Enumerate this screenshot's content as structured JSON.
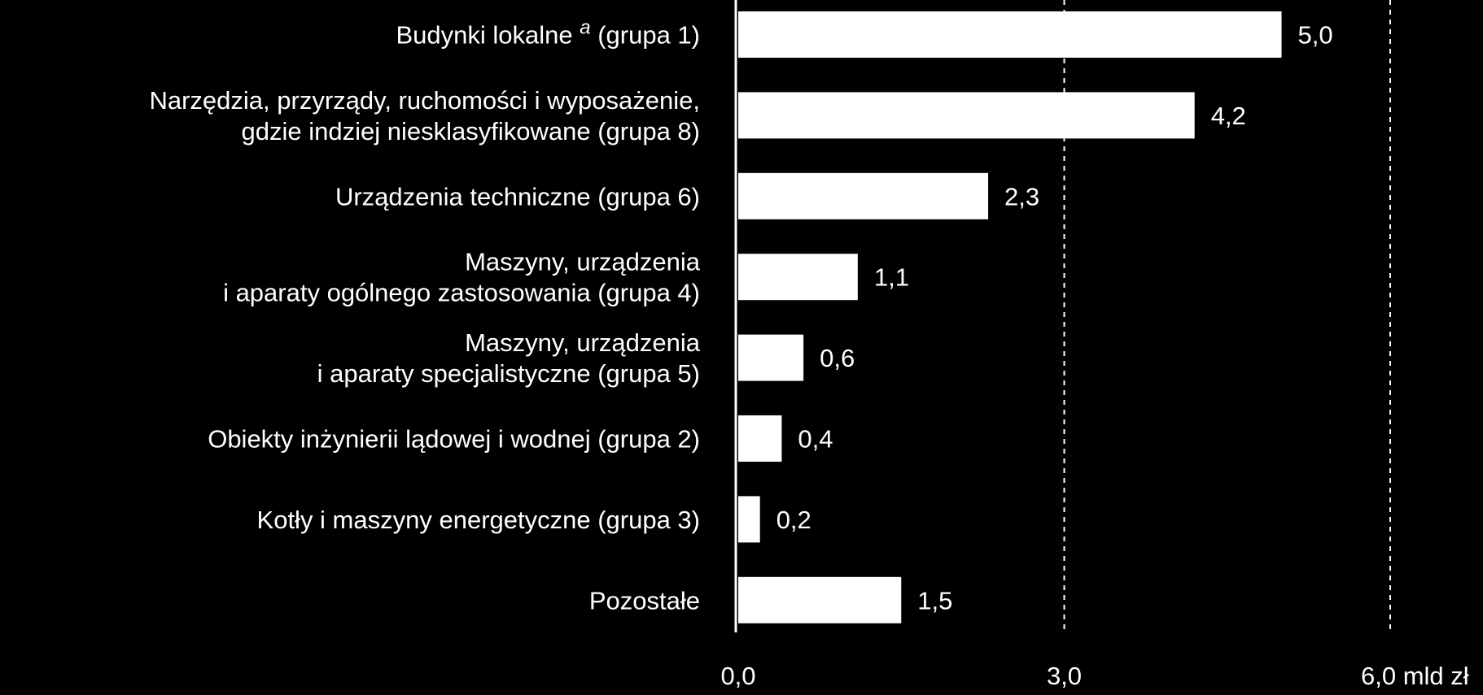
{
  "chart_data": {
    "type": "bar",
    "orientation": "horizontal",
    "categories": [
      [
        "Budynki lokalne",
        "a",
        "(grupa 1)"
      ],
      [
        "Narzędzia, przyrządy, ruchomości i wyposażenie,",
        "gdzie indziej niesklasyfikowane (grupa 8)"
      ],
      [
        "Urządzenia techniczne (grupa 6)"
      ],
      [
        "Maszyny, urządzenia",
        "i aparaty ogólnego zastosowania (grupa 4)"
      ],
      [
        "Maszyny, urządzenia",
        "i aparaty specjalistyczne (grupa 5)"
      ],
      [
        "Obiekty inżynierii lądowej i wodnej (grupa 2)"
      ],
      [
        "Kotły i maszyny energetyczne (grupa 3)"
      ],
      [
        "Pozostałe"
      ]
    ],
    "values": [
      5.0,
      4.2,
      2.3,
      1.1,
      0.6,
      0.4,
      0.2,
      1.5
    ],
    "value_labels": [
      "5,0",
      "4,2",
      "2,3",
      "1,1",
      "0,6",
      "0,4",
      "0,2",
      "1,5"
    ],
    "xlim": [
      0,
      6
    ],
    "ticks": [
      0,
      3,
      6
    ],
    "tick_labels": [
      "0,0",
      "3,0",
      "6,0 mld zł"
    ],
    "grid": "vertical dashed at 3,0 and 6,0",
    "legend": "none",
    "colors": {
      "background": "#000000",
      "bar": "#ffffff",
      "text": "#ffffff",
      "axis": "#ffffff",
      "grid": "#ffffff"
    }
  }
}
